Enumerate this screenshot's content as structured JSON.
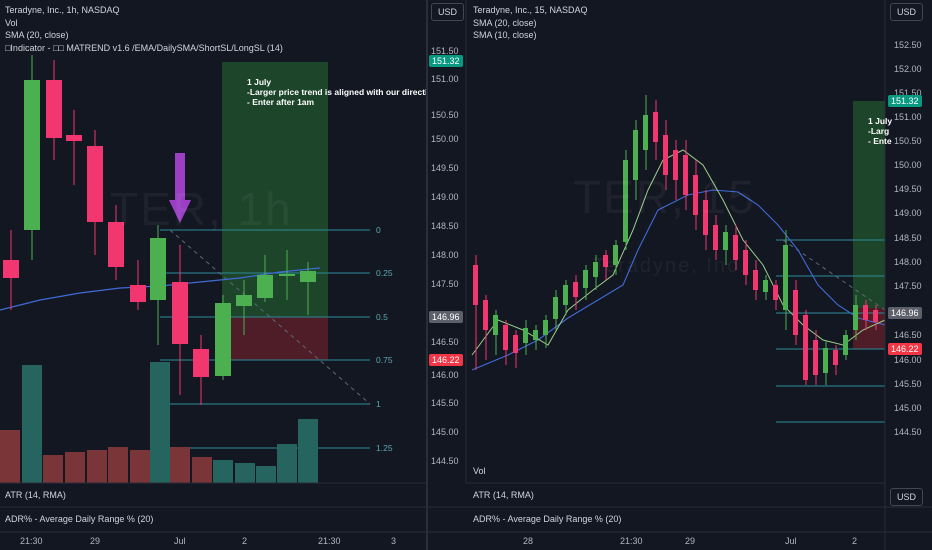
{
  "left": {
    "legend": {
      "title": "Teradyne, Inc., 1h, NASDAQ",
      "vol": "Vol",
      "sma": "SMA (20, close)",
      "indicator": "□Indicator - □□ MATREND v1.6 /EMA/DailySMA/ShortSL/LongSL (14)"
    },
    "watermark": "TER, 1h",
    "annotation": [
      "1 July",
      "-Larger price trend is aligned with our direction",
      "- Enter after 1am"
    ],
    "fib_levels": [
      "0",
      "0.25",
      "0.5",
      "0.75",
      "1",
      "1.25"
    ],
    "sub_panels": {
      "atr": "ATR (14, RMA)",
      "adr": "ADR% - Average Daily Range % (20)"
    },
    "time_labels": [
      "21:30",
      "29",
      "Jul",
      "2",
      "21:30",
      "3"
    ]
  },
  "right": {
    "legend": {
      "title": "Teradyne, Inc., 15, NASDAQ",
      "sma20": "SMA (20, close)",
      "sma10": "SMA (10, close)"
    },
    "watermark": "TER, 15",
    "watermark2": "Teradyne, Inc.",
    "annotation": [
      "1 July",
      "-Larg",
      "- Ente"
    ],
    "vol": "Vol",
    "sub_panels": {
      "atr": "ATR (14, RMA)",
      "adr": "ADR% - Average Daily Range % (20)"
    },
    "time_labels": [
      "28",
      "21:30",
      "29",
      "Jul",
      "2"
    ]
  },
  "middle_axis": {
    "usd": "USD",
    "labels": [
      "151.50",
      "151.00",
      "150.50",
      "150.00",
      "149.50",
      "149.00",
      "148.50",
      "148.00",
      "147.50",
      "147.00",
      "146.50",
      "146.00",
      "145.50",
      "145.00",
      "144.50"
    ],
    "tag_green": "151.32",
    "tag_gray": "146.96",
    "tag_red": "146.22"
  },
  "right_axis": {
    "usd": "USD",
    "usd_bottom": "USD",
    "labels": [
      "152.50",
      "152.00",
      "151.50",
      "151.00",
      "150.50",
      "150.00",
      "149.50",
      "149.00",
      "148.50",
      "148.00",
      "147.50",
      "147.00",
      "146.50",
      "146.00",
      "145.50",
      "145.00",
      "144.50"
    ],
    "tag_green": "151.32",
    "tag_gray": "146.96",
    "tag_red": "146.22"
  },
  "colors": {
    "up": "#4caf50",
    "down": "#f23670",
    "bg": "#131722",
    "fib": "#2e8b9a",
    "vol_up": "#26645f",
    "vol_down": "#7a3538"
  }
}
